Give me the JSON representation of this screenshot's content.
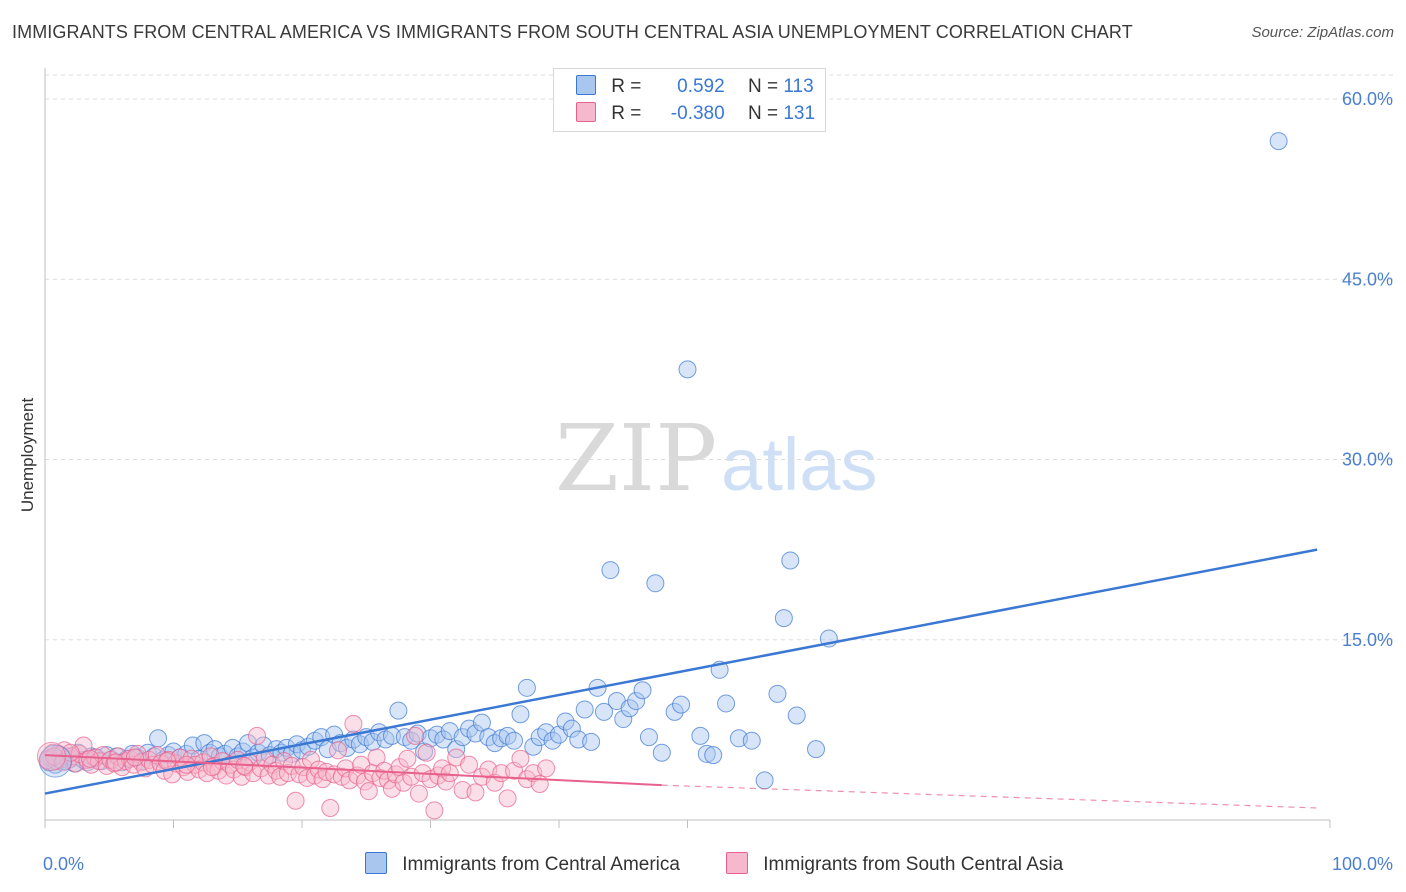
{
  "title": "IMMIGRANTS FROM CENTRAL AMERICA VS IMMIGRANTS FROM SOUTH CENTRAL ASIA UNEMPLOYMENT CORRELATION CHART",
  "source": "Source: ZipAtlas.com",
  "watermark": {
    "zip": "ZIP",
    "atlas": "atlas"
  },
  "legend": {
    "series1": {
      "r_label": "R =",
      "r_value": "0.592",
      "n_label": "N =",
      "n_value": "113"
    },
    "series2": {
      "r_label": "R =",
      "r_value": "-0.380",
      "n_label": "N =",
      "n_value": "131"
    }
  },
  "colors": {
    "blue": "#3a78d4",
    "blue_fill": "#a9c6ef",
    "pink": "#e8608c",
    "pink_fill": "#f6b8cc",
    "grid": "#dcdcdc",
    "tick_text": "#4a7fd0"
  },
  "chart_data": {
    "type": "scatter",
    "title": "IMMIGRANTS FROM CENTRAL AMERICA VS IMMIGRANTS FROM SOUTH CENTRAL ASIA UNEMPLOYMENT CORRELATION CHART",
    "xlabel": "",
    "ylabel": "Unemployment",
    "xlim": [
      0,
      100
    ],
    "ylim": [
      0,
      62
    ],
    "x_tick_labels": [
      "0.0%",
      "100.0%"
    ],
    "y_ticks": [
      15,
      30,
      45,
      60
    ],
    "y_tick_labels": [
      "15.0%",
      "30.0%",
      "45.0%",
      "60.0%"
    ],
    "grid": true,
    "legend_position": "top-center",
    "series": [
      {
        "name": "Immigrants from Central America",
        "color": "#3a78d4",
        "trend": {
          "x": [
            0,
            99
          ],
          "y": [
            2.2,
            22.5
          ],
          "style": "solid"
        },
        "points": [
          [
            0.3,
            4.8
          ],
          [
            0.5,
            5.2
          ],
          [
            0.8,
            4.6
          ],
          [
            1.0,
            5.5
          ],
          [
            1.2,
            5.0
          ],
          [
            1.5,
            4.9
          ],
          [
            1.8,
            5.3
          ],
          [
            2.0,
            5.1
          ],
          [
            2.3,
            4.7
          ],
          [
            2.6,
            5.6
          ],
          [
            3.0,
            5.0
          ],
          [
            3.3,
            4.8
          ],
          [
            3.6,
            5.3
          ],
          [
            4.0,
            5.2
          ],
          [
            4.4,
            4.9
          ],
          [
            4.8,
            5.4
          ],
          [
            5.2,
            5.0
          ],
          [
            5.6,
            5.3
          ],
          [
            6.0,
            4.8
          ],
          [
            6.4,
            5.1
          ],
          [
            6.8,
            5.5
          ],
          [
            7.2,
            5.2
          ],
          [
            7.6,
            4.9
          ],
          [
            8.0,
            5.6
          ],
          [
            8.5,
            5.3
          ],
          [
            8.8,
            6.8
          ],
          [
            9.2,
            5.0
          ],
          [
            9.6,
            5.4
          ],
          [
            10.0,
            5.7
          ],
          [
            10.5,
            5.2
          ],
          [
            11.0,
            5.5
          ],
          [
            11.5,
            6.2
          ],
          [
            12.0,
            5.1
          ],
          [
            12.4,
            6.4
          ],
          [
            12.8,
            5.6
          ],
          [
            13.2,
            5.9
          ],
          [
            13.6,
            5.3
          ],
          [
            14.0,
            5.5
          ],
          [
            14.6,
            6.0
          ],
          [
            15.0,
            5.3
          ],
          [
            15.4,
            5.7
          ],
          [
            15.8,
            6.4
          ],
          [
            16.2,
            5.2
          ],
          [
            16.6,
            5.6
          ],
          [
            17.0,
            6.2
          ],
          [
            17.5,
            5.4
          ],
          [
            18.0,
            5.9
          ],
          [
            18.4,
            5.6
          ],
          [
            18.8,
            6.0
          ],
          [
            19.2,
            5.5
          ],
          [
            19.6,
            6.3
          ],
          [
            20.0,
            5.8
          ],
          [
            20.5,
            6.1
          ],
          [
            21.0,
            6.6
          ],
          [
            21.5,
            6.9
          ],
          [
            22.0,
            5.9
          ],
          [
            22.5,
            7.1
          ],
          [
            23.0,
            6.4
          ],
          [
            23.5,
            6.0
          ],
          [
            24.0,
            6.7
          ],
          [
            24.5,
            6.3
          ],
          [
            25.0,
            6.9
          ],
          [
            25.5,
            6.5
          ],
          [
            26.0,
            7.3
          ],
          [
            26.5,
            6.7
          ],
          [
            27.0,
            7.0
          ],
          [
            27.5,
            9.1
          ],
          [
            28.0,
            6.9
          ],
          [
            28.5,
            6.6
          ],
          [
            29.0,
            7.2
          ],
          [
            29.5,
            5.7
          ],
          [
            30.0,
            6.8
          ],
          [
            30.5,
            7.1
          ],
          [
            31.0,
            6.7
          ],
          [
            31.5,
            7.4
          ],
          [
            32.0,
            5.9
          ],
          [
            32.5,
            6.9
          ],
          [
            33.0,
            7.6
          ],
          [
            33.5,
            7.2
          ],
          [
            34.0,
            8.1
          ],
          [
            34.5,
            6.9
          ],
          [
            35.0,
            6.4
          ],
          [
            35.5,
            6.8
          ],
          [
            36.0,
            7.0
          ],
          [
            36.5,
            6.6
          ],
          [
            37.0,
            8.8
          ],
          [
            37.5,
            11.0
          ],
          [
            38.0,
            6.1
          ],
          [
            38.5,
            6.9
          ],
          [
            39.0,
            7.3
          ],
          [
            39.5,
            6.6
          ],
          [
            40.0,
            7.1
          ],
          [
            40.5,
            8.2
          ],
          [
            41.0,
            7.6
          ],
          [
            41.5,
            6.7
          ],
          [
            42.0,
            9.2
          ],
          [
            42.5,
            6.5
          ],
          [
            43.0,
            11.0
          ],
          [
            43.5,
            9.0
          ],
          [
            44.0,
            20.8
          ],
          [
            44.5,
            9.9
          ],
          [
            45.0,
            8.4
          ],
          [
            45.5,
            9.3
          ],
          [
            46.0,
            9.9
          ],
          [
            46.5,
            10.8
          ],
          [
            47.0,
            6.9
          ],
          [
            47.5,
            19.7
          ],
          [
            48.0,
            5.6
          ],
          [
            49.0,
            9.0
          ],
          [
            49.5,
            9.6
          ],
          [
            50.0,
            37.5
          ],
          [
            51.0,
            7.0
          ],
          [
            52.5,
            12.5
          ]
        ],
        "extra_points": [
          [
            51.5,
            5.5
          ],
          [
            52.0,
            5.4
          ],
          [
            53.0,
            9.7
          ],
          [
            54.0,
            6.8
          ],
          [
            55.0,
            6.6
          ],
          [
            56.0,
            3.3
          ],
          [
            57.0,
            10.5
          ],
          [
            57.5,
            16.8
          ],
          [
            58.0,
            21.6
          ],
          [
            58.5,
            8.7
          ],
          [
            60.0,
            5.9
          ],
          [
            61.0,
            15.1
          ],
          [
            96.0,
            56.5
          ]
        ]
      },
      {
        "name": "Immigrants from South Central Asia",
        "color": "#e8608c",
        "trend": {
          "x": [
            0,
            48
          ],
          "y": [
            5.4,
            2.9
          ],
          "style": "solid",
          "dashed_extension": {
            "x": [
              48,
              99
            ],
            "y": [
              2.9,
              1.0
            ]
          }
        },
        "points": [
          [
            0.3,
            5.2
          ],
          [
            0.6,
            5.6
          ],
          [
            0.9,
            4.9
          ],
          [
            1.2,
            5.4
          ],
          [
            1.5,
            5.8
          ],
          [
            1.8,
            5.0
          ],
          [
            2.1,
            5.3
          ],
          [
            2.4,
            4.7
          ],
          [
            2.7,
            5.5
          ],
          [
            3.0,
            6.2
          ],
          [
            3.3,
            5.0
          ],
          [
            3.6,
            4.6
          ],
          [
            3.9,
            5.2
          ],
          [
            4.2,
            4.9
          ],
          [
            4.5,
            5.4
          ],
          [
            4.8,
            4.5
          ],
          [
            5.1,
            5.0
          ],
          [
            5.4,
            4.7
          ],
          [
            5.7,
            5.3
          ],
          [
            6.0,
            4.4
          ],
          [
            6.3,
            4.9
          ],
          [
            6.6,
            5.1
          ],
          [
            6.9,
            4.6
          ],
          [
            7.2,
            5.5
          ],
          [
            7.5,
            4.8
          ],
          [
            7.8,
            4.3
          ],
          [
            8.1,
            5.0
          ],
          [
            8.4,
            4.6
          ],
          [
            8.7,
            5.4
          ],
          [
            9.0,
            4.7
          ],
          [
            9.3,
            4.1
          ],
          [
            9.6,
            5.0
          ],
          [
            9.9,
            3.8
          ],
          [
            10.2,
            4.7
          ],
          [
            10.5,
            5.2
          ],
          [
            10.8,
            4.4
          ],
          [
            11.1,
            4.0
          ],
          [
            11.4,
            5.1
          ],
          [
            11.7,
            4.6
          ],
          [
            12.0,
            4.2
          ],
          [
            12.3,
            4.8
          ],
          [
            12.6,
            3.9
          ],
          [
            12.9,
            5.3
          ],
          [
            13.2,
            4.5
          ],
          [
            13.5,
            4.1
          ],
          [
            13.8,
            4.9
          ],
          [
            14.1,
            3.7
          ],
          [
            14.4,
            4.6
          ],
          [
            14.7,
            4.2
          ],
          [
            15.0,
            5.0
          ],
          [
            15.3,
            3.6
          ],
          [
            15.6,
            4.4
          ],
          [
            15.9,
            4.8
          ],
          [
            16.2,
            3.9
          ],
          [
            16.5,
            7.0
          ],
          [
            16.8,
            4.3
          ],
          [
            17.1,
            5.1
          ],
          [
            17.4,
            3.7
          ],
          [
            17.7,
            4.6
          ],
          [
            18.0,
            4.1
          ],
          [
            18.3,
            3.6
          ],
          [
            18.6,
            4.9
          ],
          [
            18.9,
            3.9
          ],
          [
            19.2,
            4.5
          ],
          [
            19.5,
            1.6
          ],
          [
            19.8,
            3.8
          ],
          [
            20.1,
            4.4
          ],
          [
            20.4,
            3.5
          ],
          [
            20.7,
            5.0
          ],
          [
            21.0,
            3.7
          ],
          [
            21.3,
            4.2
          ],
          [
            21.6,
            3.4
          ],
          [
            21.9,
            4.0
          ],
          [
            22.2,
            1.0
          ],
          [
            22.5,
            3.8
          ],
          [
            22.8,
            5.8
          ],
          [
            23.1,
            3.6
          ],
          [
            23.4,
            4.3
          ],
          [
            23.7,
            3.3
          ],
          [
            24.0,
            8.0
          ],
          [
            24.3,
            3.7
          ],
          [
            24.6,
            4.6
          ],
          [
            24.9,
            3.2
          ],
          [
            25.2,
            2.4
          ],
          [
            25.5,
            3.9
          ],
          [
            25.8,
            5.2
          ],
          [
            26.1,
            3.5
          ],
          [
            26.4,
            4.1
          ],
          [
            26.7,
            3.3
          ],
          [
            27.0,
            2.6
          ],
          [
            27.3,
            3.8
          ],
          [
            27.6,
            4.4
          ],
          [
            27.9,
            3.1
          ],
          [
            28.2,
            5.1
          ],
          [
            28.5,
            3.6
          ],
          [
            28.8,
            7.0
          ],
          [
            29.1,
            2.2
          ],
          [
            29.4,
            3.9
          ],
          [
            29.7,
            5.6
          ],
          [
            30.0,
            3.4
          ],
          [
            30.3,
            0.8
          ],
          [
            30.6,
            3.7
          ],
          [
            30.9,
            4.3
          ],
          [
            31.2,
            3.2
          ],
          [
            31.5,
            3.9
          ],
          [
            32.0,
            5.2
          ],
          [
            32.5,
            2.5
          ],
          [
            33.0,
            4.6
          ],
          [
            33.5,
            2.3
          ],
          [
            34.0,
            3.6
          ],
          [
            34.5,
            4.2
          ],
          [
            35.0,
            3.1
          ],
          [
            35.5,
            3.9
          ],
          [
            36.0,
            1.8
          ],
          [
            36.5,
            4.1
          ],
          [
            37.0,
            5.1
          ],
          [
            37.5,
            3.4
          ],
          [
            38.0,
            3.9
          ],
          [
            38.5,
            3.0
          ],
          [
            39.0,
            4.3
          ]
        ],
        "extra_points": [
          [
            0.2,
            5.0
          ],
          [
            0.7,
            5.3
          ],
          [
            1.4,
            4.8
          ],
          [
            2.0,
            5.6
          ],
          [
            3.5,
            5.1
          ],
          [
            5.5,
            4.8
          ],
          [
            7.0,
            5.2
          ],
          [
            9.5,
            4.9
          ],
          [
            11.0,
            4.6
          ],
          [
            13.0,
            4.4
          ],
          [
            15.5,
            4.5
          ]
        ]
      }
    ]
  }
}
